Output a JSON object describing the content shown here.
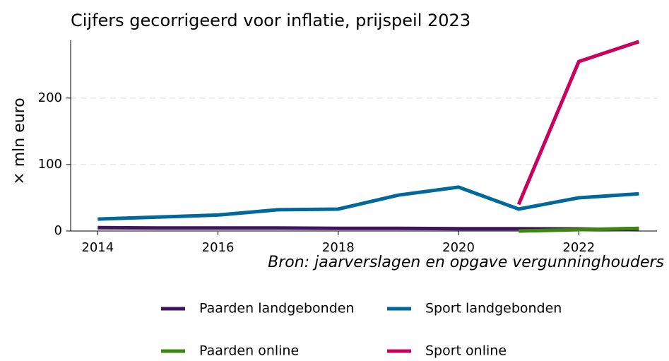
{
  "chart_data": {
    "type": "line",
    "title": "Cijfers gecorrigeerd voor inflatie, prijspeil 2023",
    "y_label": "× mln euro",
    "annotation": "Bron: jaarverslagen en opgave vergunninghouders",
    "x": [
      2014,
      2015,
      2016,
      2017,
      2018,
      2019,
      2020,
      2021,
      2022,
      2023
    ],
    "series": [
      {
        "name": "Paarden landgebonden",
        "color": "#42145f",
        "values": [
          5,
          4.5,
          4.5,
          4.5,
          4,
          4,
          3.5,
          3.5,
          3,
          2
        ]
      },
      {
        "name": "Sport landgebonden",
        "color": "#01689b",
        "values": [
          18,
          21,
          24,
          32,
          33,
          54,
          66,
          33,
          50,
          56
        ]
      },
      {
        "name": "Paarden online",
        "color": "#39870c",
        "values": [
          null,
          null,
          null,
          null,
          null,
          null,
          null,
          0,
          2,
          4
        ]
      },
      {
        "name": "Sport online",
        "color": "#ca005d",
        "values": [
          null,
          null,
          null,
          null,
          null,
          null,
          null,
          40,
          255,
          285
        ]
      }
    ],
    "xlim": [
      2013.55,
      2023.3
    ],
    "xticks": [
      2014,
      2016,
      2018,
      2020,
      2022
    ],
    "ylim": [
      0,
      287
    ],
    "yticks": [
      0,
      100,
      200
    ],
    "grid": true
  }
}
